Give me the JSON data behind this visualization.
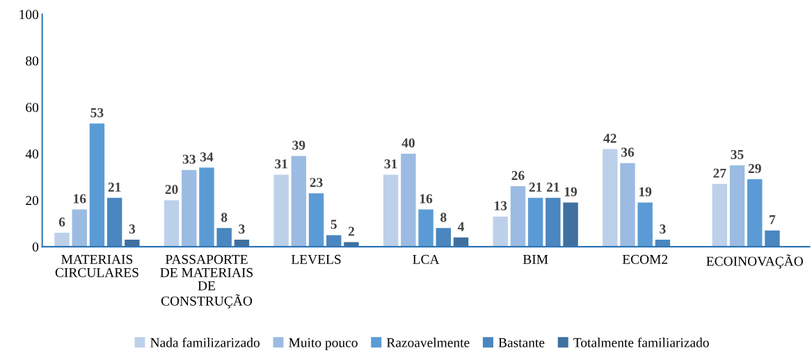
{
  "chart_data": {
    "type": "bar",
    "categories": [
      "MATERIAIS\nCIRCULARES",
      "PASSAPORTE\nDE MATERIAIS\nDE\nCONSTRUÇÃO",
      "LEVELS",
      "LCA",
      "BIM",
      "ECOM2",
      "ECOINOVAÇÃO"
    ],
    "series": [
      {
        "name": "Nada familizarizado",
        "color": "#bdd0ea",
        "values": [
          6,
          20,
          31,
          31,
          13,
          42,
          27
        ]
      },
      {
        "name": "Muito pouco",
        "color": "#9cbbe2",
        "values": [
          16,
          33,
          39,
          40,
          26,
          36,
          35
        ]
      },
      {
        "name": "Razoavelmente",
        "color": "#5b9bd5",
        "values": [
          53,
          34,
          23,
          16,
          21,
          19,
          29
        ]
      },
      {
        "name": "Bastante",
        "color": "#4a86bf",
        "values": [
          21,
          8,
          5,
          8,
          21,
          3,
          7
        ]
      },
      {
        "name": "Totalmente familiarizado",
        "color": "#3f70a0",
        "values": [
          3,
          3,
          2,
          4,
          19,
          null,
          null
        ]
      }
    ],
    "ylim": [
      0,
      100
    ],
    "yticks": [
      0,
      20,
      40,
      60,
      80,
      100
    ],
    "grid": false,
    "legend": "bottom",
    "data_labels": true
  }
}
